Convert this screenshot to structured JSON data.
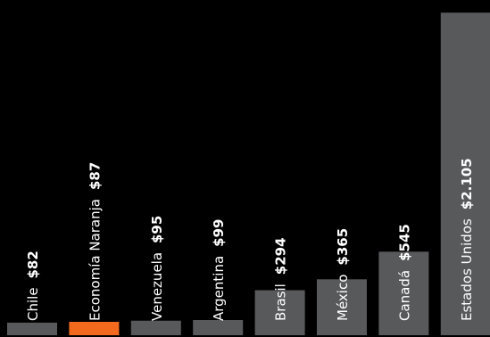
{
  "chart_data": {
    "type": "bar",
    "categories": [
      "Chile",
      "Economía Naranja",
      "Venezuela",
      "Argentina",
      "Brasil",
      "México",
      "Canadá",
      "Estados Unidos"
    ],
    "values": [
      82,
      87,
      95,
      99,
      294,
      365,
      545,
      2105
    ],
    "value_labels": [
      "$82",
      "$87",
      "$95",
      "$99",
      "$294",
      "$365",
      "$545",
      "$2.105"
    ],
    "highlight": "Economía Naranja",
    "ylim": [
      0,
      2170
    ],
    "grid": false,
    "legend": "none",
    "title": "",
    "xlabel": "",
    "ylabel": ""
  },
  "colors": {
    "background": "#000000",
    "bar": "#58595b",
    "highlight": "#f36a1e",
    "text": "#ffffff"
  }
}
